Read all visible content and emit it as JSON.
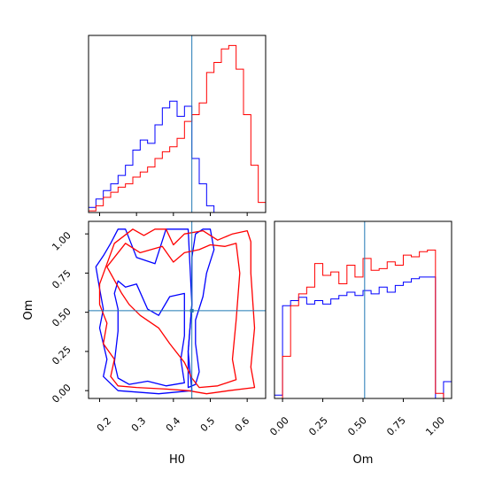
{
  "chart_data": {
    "type": "corner",
    "parameters": [
      "H0",
      "Om"
    ],
    "truth": {
      "H0": 0.45,
      "Om": 0.51
    },
    "colors": {
      "blue": "#0000ff",
      "red": "#ff0000",
      "truth": "#1f77b4"
    },
    "panels": {
      "hist_H0": {
        "type": "histogram",
        "xlim": [
          0.17,
          0.65
        ],
        "series": [
          {
            "color": "blue",
            "edges": [
              0.17,
              0.19,
              0.21,
              0.23,
              0.25,
              0.27,
              0.29,
              0.31,
              0.33,
              0.35,
              0.37,
              0.39,
              0.41,
              0.43,
              0.45,
              0.47,
              0.49,
              0.51
            ],
            "heights": [
              0.03,
              0.08,
              0.13,
              0.17,
              0.22,
              0.28,
              0.37,
              0.43,
              0.41,
              0.52,
              0.62,
              0.66,
              0.57,
              0.63,
              0.32,
              0.17,
              0.04
            ]
          },
          {
            "color": "red",
            "edges": [
              0.17,
              0.19,
              0.21,
              0.23,
              0.25,
              0.27,
              0.29,
              0.31,
              0.33,
              0.35,
              0.37,
              0.39,
              0.41,
              0.43,
              0.45,
              0.47,
              0.49,
              0.51,
              0.53,
              0.55,
              0.57,
              0.59,
              0.61,
              0.63,
              0.65
            ],
            "heights": [
              0.01,
              0.04,
              0.09,
              0.12,
              0.15,
              0.17,
              0.21,
              0.24,
              0.27,
              0.32,
              0.36,
              0.39,
              0.44,
              0.54,
              0.58,
              0.65,
              0.83,
              0.89,
              0.97,
              0.99,
              0.85,
              0.58,
              0.28,
              0.06
            ]
          }
        ]
      },
      "hist_Om": {
        "type": "histogram",
        "xlim": [
          -0.05,
          1.05
        ],
        "xticks": [
          "0.00",
          "0.25",
          "0.50",
          "0.75",
          "1.00"
        ],
        "xlabel": "Om",
        "series": [
          {
            "color": "blue",
            "edges": [
              -0.05,
              0.0,
              0.05,
              0.1,
              0.15,
              0.2,
              0.25,
              0.3,
              0.35,
              0.4,
              0.45,
              0.5,
              0.55,
              0.6,
              0.65,
              0.7,
              0.75,
              0.8,
              0.85,
              0.9,
              0.95,
              1.0,
              1.05
            ],
            "heights": [
              0.02,
              0.55,
              0.58,
              0.6,
              0.56,
              0.58,
              0.56,
              0.59,
              0.61,
              0.63,
              0.61,
              0.64,
              0.62,
              0.66,
              0.63,
              0.67,
              0.69,
              0.71,
              0.72,
              0.72,
              0.0,
              0.1
            ]
          },
          {
            "color": "red",
            "edges": [
              0.0,
              0.05,
              0.1,
              0.15,
              0.2,
              0.25,
              0.3,
              0.35,
              0.4,
              0.45,
              0.5,
              0.55,
              0.6,
              0.65,
              0.7,
              0.75,
              0.8,
              0.85,
              0.9,
              0.95,
              1.0
            ],
            "heights": [
              0.25,
              0.55,
              0.62,
              0.66,
              0.8,
              0.73,
              0.75,
              0.68,
              0.79,
              0.72,
              0.83,
              0.76,
              0.77,
              0.81,
              0.79,
              0.85,
              0.84,
              0.87,
              0.88,
              0.03
            ]
          }
        ]
      },
      "contour_H0_Om": {
        "type": "contour",
        "xlim": [
          0.17,
          0.65
        ],
        "ylim": [
          -0.05,
          1.08
        ],
        "xticks": [
          "0.2",
          "0.3",
          "0.4",
          "0.5",
          "0.6"
        ],
        "yticks": [
          "0.00",
          "0.25",
          "0.50",
          "0.75",
          "1.00"
        ],
        "xlabel": "H0",
        "ylabel": "Om",
        "levels": [
          {
            "color": "blue",
            "points": [
              [
                0.19,
                0.79
              ],
              [
                0.21,
                0.86
              ],
              [
                0.23,
                0.94
              ],
              [
                0.25,
                1.03
              ],
              [
                0.27,
                1.03
              ],
              [
                0.3,
                0.85
              ],
              [
                0.35,
                0.81
              ],
              [
                0.38,
                1.03
              ],
              [
                0.44,
                1.03
              ],
              [
                0.45,
                0.55
              ],
              [
                0.44,
                0.25
              ],
              [
                0.45,
                0.0
              ],
              [
                0.36,
                -0.02
              ],
              [
                0.25,
                0.0
              ],
              [
                0.21,
                0.09
              ],
              [
                0.22,
                0.2
              ],
              [
                0.2,
                0.4
              ],
              [
                0.21,
                0.52
              ],
              [
                0.2,
                0.65
              ]
            ]
          },
          {
            "color": "blue",
            "points": [
              [
                0.24,
                0.18
              ],
              [
                0.25,
                0.38
              ],
              [
                0.25,
                0.52
              ],
              [
                0.24,
                0.62
              ],
              [
                0.25,
                0.7
              ],
              [
                0.27,
                0.66
              ],
              [
                0.3,
                0.68
              ],
              [
                0.33,
                0.52
              ],
              [
                0.36,
                0.48
              ],
              [
                0.39,
                0.6
              ],
              [
                0.43,
                0.62
              ],
              [
                0.43,
                0.35
              ],
              [
                0.42,
                0.2
              ],
              [
                0.43,
                0.05
              ],
              [
                0.38,
                0.03
              ],
              [
                0.33,
                0.06
              ],
              [
                0.28,
                0.04
              ],
              [
                0.25,
                0.08
              ]
            ]
          },
          {
            "color": "blue",
            "points": [
              [
                0.48,
                1.03
              ],
              [
                0.5,
                1.03
              ],
              [
                0.51,
                0.9
              ],
              [
                0.49,
                0.75
              ],
              [
                0.48,
                0.6
              ],
              [
                0.46,
                0.45
              ],
              [
                0.46,
                0.3
              ],
              [
                0.47,
                0.12
              ],
              [
                0.46,
                0.04
              ],
              [
                0.44,
                0.02
              ],
              [
                0.44,
                0.25
              ],
              [
                0.45,
                0.55
              ],
              [
                0.45,
                0.85
              ],
              [
                0.46,
                1.0
              ]
            ]
          },
          {
            "color": "red",
            "points": [
              [
                0.2,
                0.68
              ],
              [
                0.24,
                0.94
              ],
              [
                0.29,
                1.03
              ],
              [
                0.32,
                0.99
              ],
              [
                0.35,
                1.03
              ],
              [
                0.38,
                1.03
              ],
              [
                0.4,
                0.93
              ],
              [
                0.43,
                1.0
              ],
              [
                0.48,
                1.02
              ],
              [
                0.52,
                0.96
              ],
              [
                0.56,
                1.0
              ],
              [
                0.6,
                1.02
              ],
              [
                0.61,
                0.95
              ],
              [
                0.61,
                0.75
              ],
              [
                0.62,
                0.4
              ],
              [
                0.61,
                0.15
              ],
              [
                0.62,
                0.02
              ],
              [
                0.55,
                0.0
              ],
              [
                0.49,
                -0.02
              ],
              [
                0.44,
                0.0
              ],
              [
                0.38,
                0.01
              ],
              [
                0.3,
                0.02
              ],
              [
                0.25,
                0.03
              ],
              [
                0.23,
                0.09
              ],
              [
                0.24,
                0.2
              ],
              [
                0.21,
                0.3
              ],
              [
                0.22,
                0.43
              ],
              [
                0.2,
                0.55
              ]
            ]
          },
          {
            "color": "red",
            "points": [
              [
                0.22,
                0.79
              ],
              [
                0.27,
                0.94
              ],
              [
                0.31,
                0.88
              ],
              [
                0.37,
                0.92
              ],
              [
                0.4,
                0.82
              ],
              [
                0.43,
                0.88
              ],
              [
                0.47,
                0.9
              ],
              [
                0.5,
                0.93
              ],
              [
                0.54,
                0.92
              ],
              [
                0.57,
                0.94
              ],
              [
                0.58,
                0.75
              ],
              [
                0.57,
                0.45
              ],
              [
                0.56,
                0.2
              ],
              [
                0.57,
                0.07
              ],
              [
                0.52,
                0.03
              ],
              [
                0.47,
                0.02
              ],
              [
                0.45,
                0.08
              ],
              [
                0.43,
                0.18
              ],
              [
                0.39,
                0.3
              ],
              [
                0.36,
                0.4
              ],
              [
                0.31,
                0.48
              ],
              [
                0.28,
                0.55
              ],
              [
                0.26,
                0.62
              ]
            ]
          }
        ]
      }
    }
  }
}
